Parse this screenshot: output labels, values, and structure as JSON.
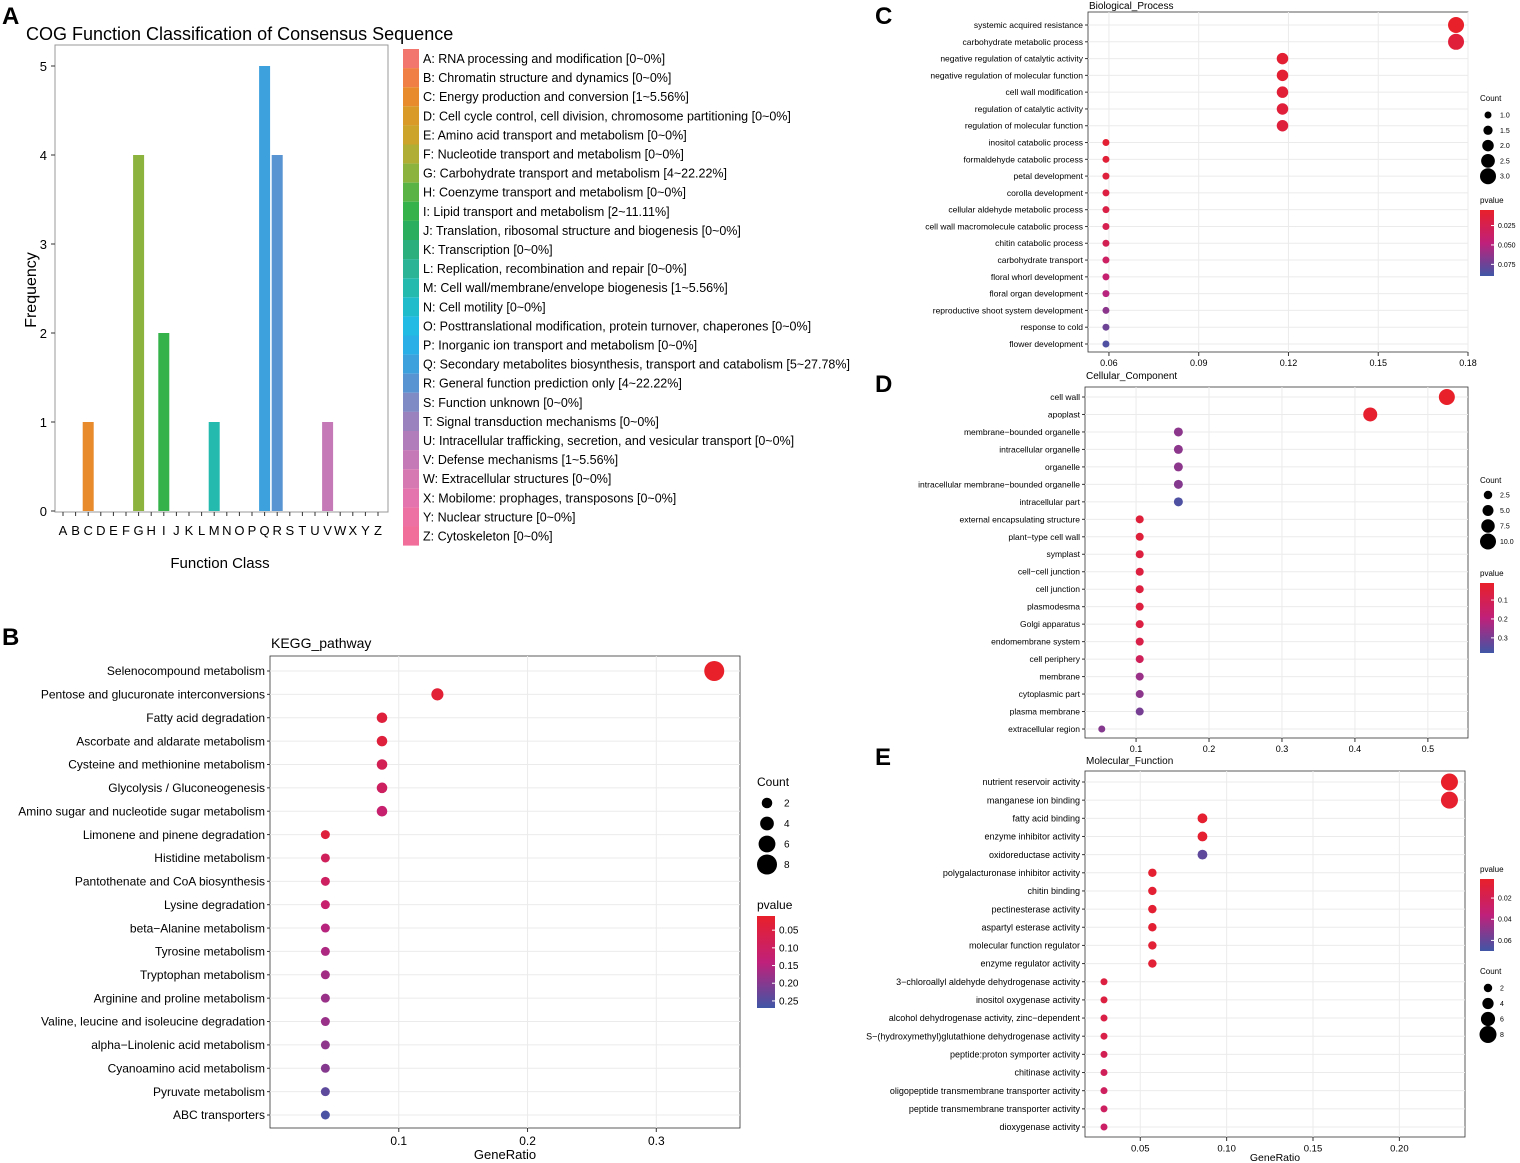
{
  "colors": {
    "pvalue_high": "#E8202A",
    "pvalue_mid": "#C0207A",
    "pvalue_low": "#4056A6",
    "grid": "#EBEBEB",
    "panel_border": "#333333"
  },
  "panel_letters": {
    "a": "A",
    "b": "B",
    "c": "C",
    "d": "D",
    "e": "E"
  },
  "chart_data": [
    {
      "id": "A",
      "type": "bar",
      "title": "COG Function Classification of Consensus Sequence",
      "xlabel": "Function Class",
      "ylabel": "Frequency",
      "ylim": [
        0,
        5.2
      ],
      "yticks": [
        0,
        1,
        2,
        3,
        4,
        5
      ],
      "categories": [
        "A",
        "B",
        "C",
        "D",
        "E",
        "F",
        "G",
        "H",
        "I",
        "J",
        "K",
        "L",
        "M",
        "N",
        "O",
        "P",
        "Q",
        "R",
        "S",
        "T",
        "U",
        "V",
        "W",
        "X",
        "Y",
        "Z"
      ],
      "values": [
        0,
        0,
        1,
        0,
        0,
        0,
        4,
        0,
        2,
        0,
        0,
        0,
        1,
        0,
        0,
        0,
        5,
        4,
        0,
        0,
        0,
        1,
        0,
        0,
        0,
        0
      ],
      "colors": [
        "#F2766E",
        "#F07F45",
        "#E88B2C",
        "#D99A27",
        "#CCA32B",
        "#B0AE35",
        "#8BB33E",
        "#59B445",
        "#35B24A",
        "#2BAE5D",
        "#2BB07D",
        "#2BB596",
        "#24BAAE",
        "#21BCCB",
        "#22BBE3",
        "#2AB0E6",
        "#3DA1DE",
        "#5894D2",
        "#7F8BC4",
        "#9A82BE",
        "#B17DBA",
        "#C57AB7",
        "#D678B2",
        "#E474AE",
        "#EE71A3",
        "#F26E9A"
      ],
      "legend": [
        "A: RNA processing and modification [0~0%]",
        "B: Chromatin structure and dynamics [0~0%]",
        "C: Energy production and conversion [1~5.56%]",
        "D: Cell cycle control, cell division, chromosome partitioning [0~0%]",
        "E: Amino acid transport and metabolism [0~0%]",
        "F: Nucleotide transport and metabolism [0~0%]",
        "G: Carbohydrate transport and metabolism [4~22.22%]",
        "H: Coenzyme transport and metabolism [0~0%]",
        "I: Lipid transport and metabolism [2~11.11%]",
        "J: Translation, ribosomal structure and biogenesis [0~0%]",
        "K: Transcription [0~0%]",
        "L: Replication, recombination and repair [0~0%]",
        "M: Cell wall/membrane/envelope biogenesis [1~5.56%]",
        "N: Cell motility [0~0%]",
        "O: Posttranslational modification, protein turnover, chaperones [0~0%]",
        "P: Inorganic ion transport and metabolism [0~0%]",
        "Q: Secondary metabolites biosynthesis, transport and catabolism [5~27.78%]",
        "R: General function prediction only [4~22.22%]",
        "S: Function unknown [0~0%]",
        "T: Signal transduction mechanisms [0~0%]",
        "U: Intracellular trafficking, secretion, and vesicular transport [0~0%]",
        "V: Defense mechanisms [1~5.56%]",
        "W: Extracellular structures [0~0%]",
        "X: Mobilome: prophages, transposons [0~0%]",
        "Y: Nuclear structure [0~0%]",
        "Z: Cytoskeleton [0~0%]"
      ]
    },
    {
      "id": "B",
      "type": "scatter",
      "title": "KEGG_pathway",
      "xlabel": "GeneRatio",
      "xlim": [
        0.0,
        0.365
      ],
      "xticks": [
        0.1,
        0.2,
        0.3
      ],
      "xtick_labels": [
        "0.1",
        "0.2",
        "0.3"
      ],
      "terms": [
        {
          "label": "Selenocompound metabolism",
          "x": 0.345,
          "count": 8,
          "p": 0.01
        },
        {
          "label": "Pentose and glucuronate interconversions",
          "x": 0.13,
          "count": 3,
          "p": 0.03
        },
        {
          "label": "Fatty acid degradation",
          "x": 0.087,
          "count": 2,
          "p": 0.04
        },
        {
          "label": "Ascorbate and aldarate metabolism",
          "x": 0.087,
          "count": 2,
          "p": 0.04
        },
        {
          "label": "Cysteine and methionine metabolism",
          "x": 0.087,
          "count": 2,
          "p": 0.08
        },
        {
          "label": "Glycolysis / Gluconeogenesis",
          "x": 0.087,
          "count": 2,
          "p": 0.1
        },
        {
          "label": "Amino sugar and nucleotide sugar metabolism",
          "x": 0.087,
          "count": 2,
          "p": 0.12
        },
        {
          "label": "Limonene and pinene degradation",
          "x": 0.043,
          "count": 1,
          "p": 0.04
        },
        {
          "label": "Histidine metabolism",
          "x": 0.043,
          "count": 1,
          "p": 0.09
        },
        {
          "label": "Pantothenate and CoA biosynthesis",
          "x": 0.043,
          "count": 1,
          "p": 0.1
        },
        {
          "label": "Lysine degradation",
          "x": 0.043,
          "count": 1,
          "p": 0.12
        },
        {
          "label": "beta−Alanine metabolism",
          "x": 0.043,
          "count": 1,
          "p": 0.15
        },
        {
          "label": "Tyrosine metabolism",
          "x": 0.043,
          "count": 1,
          "p": 0.16
        },
        {
          "label": "Tryptophan metabolism",
          "x": 0.043,
          "count": 1,
          "p": 0.17
        },
        {
          "label": "Arginine and proline metabolism",
          "x": 0.043,
          "count": 1,
          "p": 0.18
        },
        {
          "label": "Valine, leucine and isoleucine degradation",
          "x": 0.043,
          "count": 1,
          "p": 0.18
        },
        {
          "label": "alpha−Linolenic acid metabolism",
          "x": 0.043,
          "count": 1,
          "p": 0.19
        },
        {
          "label": "Cyanoamino acid metabolism",
          "x": 0.043,
          "count": 1,
          "p": 0.2
        },
        {
          "label": "Pyruvate metabolism",
          "x": 0.043,
          "count": 1,
          "p": 0.24
        },
        {
          "label": "ABC transporters",
          "x": 0.043,
          "count": 1,
          "p": 0.26
        }
      ],
      "count_legend": {
        "title": "Count",
        "values": [
          2,
          4,
          6,
          8
        ],
        "labels": [
          "2",
          "4",
          "6",
          "8"
        ]
      },
      "pvalue_legend": {
        "title": "pvalue",
        "range": [
          0.01,
          0.27
        ],
        "ticks": [
          0.05,
          0.1,
          0.15,
          0.2,
          0.25
        ],
        "labels": [
          "0.05",
          "0.10",
          "0.15",
          "0.20",
          "0.25"
        ]
      }
    },
    {
      "id": "C",
      "type": "scatter",
      "title": "Biological_Process",
      "xlabel": "",
      "xlim": [
        0.053,
        0.18
      ],
      "xticks": [
        0.06,
        0.09,
        0.12,
        0.15,
        0.18
      ],
      "xtick_labels": [
        "0.06",
        "0.09",
        "0.12",
        "0.15",
        "0.18"
      ],
      "terms": [
        {
          "label": "systemic acquired resistance",
          "x": 0.176,
          "count": 3,
          "p": 0.005
        },
        {
          "label": "carbohydrate metabolic process",
          "x": 0.176,
          "count": 3,
          "p": 0.014
        },
        {
          "label": "negative regulation of catalytic activity",
          "x": 0.118,
          "count": 2,
          "p": 0.01
        },
        {
          "label": "negative regulation of molecular function",
          "x": 0.118,
          "count": 2,
          "p": 0.01
        },
        {
          "label": "cell wall modification",
          "x": 0.118,
          "count": 2,
          "p": 0.012
        },
        {
          "label": "regulation of catalytic activity",
          "x": 0.118,
          "count": 2,
          "p": 0.014
        },
        {
          "label": "regulation of molecular function",
          "x": 0.118,
          "count": 2,
          "p": 0.015
        },
        {
          "label": "inositol catabolic process",
          "x": 0.059,
          "count": 1,
          "p": 0.01
        },
        {
          "label": "formaldehyde catabolic process",
          "x": 0.059,
          "count": 1,
          "p": 0.012
        },
        {
          "label": "petal development",
          "x": 0.059,
          "count": 1,
          "p": 0.015
        },
        {
          "label": "corolla development",
          "x": 0.059,
          "count": 1,
          "p": 0.017
        },
        {
          "label": "cellular aldehyde metabolic process",
          "x": 0.059,
          "count": 1,
          "p": 0.02
        },
        {
          "label": "cell wall macromolecule catabolic process",
          "x": 0.059,
          "count": 1,
          "p": 0.025
        },
        {
          "label": "chitin catabolic process",
          "x": 0.059,
          "count": 1,
          "p": 0.027
        },
        {
          "label": "carbohydrate transport",
          "x": 0.059,
          "count": 1,
          "p": 0.035
        },
        {
          "label": "floral whorl development",
          "x": 0.059,
          "count": 1,
          "p": 0.042
        },
        {
          "label": "floral organ development",
          "x": 0.059,
          "count": 1,
          "p": 0.05
        },
        {
          "label": "reproductive shoot system development",
          "x": 0.059,
          "count": 1,
          "p": 0.065
        },
        {
          "label": "response to cold",
          "x": 0.059,
          "count": 1,
          "p": 0.075
        },
        {
          "label": "flower development",
          "x": 0.059,
          "count": 1,
          "p": 0.085
        }
      ],
      "count_legend": {
        "title": "Count",
        "values": [
          1.0,
          1.5,
          2.0,
          2.5,
          3.0
        ],
        "labels": [
          "1.0",
          "1.5",
          "2.0",
          "2.5",
          "3.0"
        ]
      },
      "pvalue_legend": {
        "title": "pvalue",
        "range": [
          0.005,
          0.09
        ],
        "ticks": [
          0.025,
          0.05,
          0.075
        ],
        "labels": [
          "0.025",
          "0.050",
          "0.075"
        ]
      }
    },
    {
      "id": "D",
      "type": "scatter",
      "title": "Cellular_Component",
      "xlabel": "",
      "xlim": [
        0.03,
        0.555
      ],
      "xticks": [
        0.1,
        0.2,
        0.3,
        0.4,
        0.5
      ],
      "xtick_labels": [
        "0.1",
        "0.2",
        "0.3",
        "0.4",
        "0.5"
      ],
      "terms": [
        {
          "label": "cell wall",
          "x": 0.526,
          "count": 10,
          "p": 0.01
        },
        {
          "label": "apoplast",
          "x": 0.421,
          "count": 8,
          "p": 0.02
        },
        {
          "label": "membrane−bounded organelle",
          "x": 0.158,
          "count": 3,
          "p": 0.27
        },
        {
          "label": "intracellular organelle",
          "x": 0.158,
          "count": 3,
          "p": 0.27
        },
        {
          "label": "organelle",
          "x": 0.158,
          "count": 3,
          "p": 0.27
        },
        {
          "label": "intracellular membrane−bounded organelle",
          "x": 0.158,
          "count": 3,
          "p": 0.28
        },
        {
          "label": "intracellular part",
          "x": 0.158,
          "count": 3,
          "p": 0.36
        },
        {
          "label": "external encapsulating structure",
          "x": 0.105,
          "count": 2,
          "p": 0.05
        },
        {
          "label": "plant−type cell wall",
          "x": 0.105,
          "count": 2,
          "p": 0.05
        },
        {
          "label": "symplast",
          "x": 0.105,
          "count": 2,
          "p": 0.06
        },
        {
          "label": "cell−cell junction",
          "x": 0.105,
          "count": 2,
          "p": 0.06
        },
        {
          "label": "cell junction",
          "x": 0.105,
          "count": 2,
          "p": 0.06
        },
        {
          "label": "plasmodesma",
          "x": 0.105,
          "count": 2,
          "p": 0.06
        },
        {
          "label": "Golgi apparatus",
          "x": 0.105,
          "count": 2,
          "p": 0.07
        },
        {
          "label": "endomembrane system",
          "x": 0.105,
          "count": 2,
          "p": 0.08
        },
        {
          "label": "cell periphery",
          "x": 0.105,
          "count": 2,
          "p": 0.12
        },
        {
          "label": "membrane",
          "x": 0.105,
          "count": 2,
          "p": 0.25
        },
        {
          "label": "cytoplasmic part",
          "x": 0.105,
          "count": 2,
          "p": 0.27
        },
        {
          "label": "plasma membrane",
          "x": 0.105,
          "count": 2,
          "p": 0.3
        },
        {
          "label": "extracellular region",
          "x": 0.053,
          "count": 1,
          "p": 0.28
        }
      ],
      "count_legend": {
        "title": "Count",
        "values": [
          2.5,
          5.0,
          7.5,
          10.0
        ],
        "labels": [
          "2.5",
          "5.0",
          "7.5",
          "10.0"
        ]
      },
      "pvalue_legend": {
        "title": "pvalue",
        "range": [
          0.01,
          0.38
        ],
        "ticks": [
          0.1,
          0.2,
          0.3
        ],
        "labels": [
          "0.1",
          "0.2",
          "0.3"
        ]
      }
    },
    {
      "id": "E",
      "type": "scatter",
      "title": "Molecular_Function",
      "xlabel": "GeneRatio",
      "xlim": [
        0.018,
        0.238
      ],
      "xticks": [
        0.05,
        0.1,
        0.15,
        0.2
      ],
      "xtick_labels": [
        "0.05",
        "0.10",
        "0.15",
        "0.20"
      ],
      "terms": [
        {
          "label": "nutrient reservoir activity",
          "x": 0.229,
          "count": 8,
          "p": 0.003
        },
        {
          "label": "manganese ion binding",
          "x": 0.229,
          "count": 8,
          "p": 0.004
        },
        {
          "label": "fatty acid binding",
          "x": 0.086,
          "count": 3,
          "p": 0.005
        },
        {
          "label": "enzyme inhibitor activity",
          "x": 0.086,
          "count": 3,
          "p": 0.005
        },
        {
          "label": "oxidoreductase activity",
          "x": 0.086,
          "count": 3,
          "p": 0.062
        },
        {
          "label": "polygalacturonase inhibitor activity",
          "x": 0.057,
          "count": 2,
          "p": 0.005
        },
        {
          "label": "chitin binding",
          "x": 0.057,
          "count": 2,
          "p": 0.006
        },
        {
          "label": "pectinesterase activity",
          "x": 0.057,
          "count": 2,
          "p": 0.006
        },
        {
          "label": "aspartyl esterase activity",
          "x": 0.057,
          "count": 2,
          "p": 0.006
        },
        {
          "label": "molecular function regulator",
          "x": 0.057,
          "count": 2,
          "p": 0.007
        },
        {
          "label": "enzyme regulator activity",
          "x": 0.057,
          "count": 2,
          "p": 0.007
        },
        {
          "label": "3−chloroallyl aldehyde dehydrogenase activity",
          "x": 0.029,
          "count": 1,
          "p": 0.012
        },
        {
          "label": "inositol oxygenase activity",
          "x": 0.029,
          "count": 1,
          "p": 0.012
        },
        {
          "label": "alcohol dehydrogenase activity, zinc−dependent",
          "x": 0.029,
          "count": 1,
          "p": 0.014
        },
        {
          "label": "S−(hydroxymethyl)glutathione dehydrogenase activity",
          "x": 0.029,
          "count": 1,
          "p": 0.015
        },
        {
          "label": "peptide:proton symporter activity",
          "x": 0.029,
          "count": 1,
          "p": 0.02
        },
        {
          "label": "chitinase activity",
          "x": 0.029,
          "count": 1,
          "p": 0.022
        },
        {
          "label": "oligopeptide transmembrane transporter activity",
          "x": 0.029,
          "count": 1,
          "p": 0.024
        },
        {
          "label": "peptide transmembrane transporter activity",
          "x": 0.029,
          "count": 1,
          "p": 0.025
        },
        {
          "label": "dioxygenase activity",
          "x": 0.029,
          "count": 1,
          "p": 0.027
        }
      ],
      "count_legend": {
        "title": "Count",
        "values": [
          2,
          4,
          6,
          8
        ],
        "labels": [
          "2",
          "4",
          "6",
          "8"
        ]
      },
      "pvalue_legend": {
        "title": "pvalue",
        "range": [
          0.002,
          0.07
        ],
        "ticks": [
          0.02,
          0.04,
          0.06
        ],
        "labels": [
          "0.02",
          "0.04",
          "0.06"
        ]
      }
    }
  ]
}
